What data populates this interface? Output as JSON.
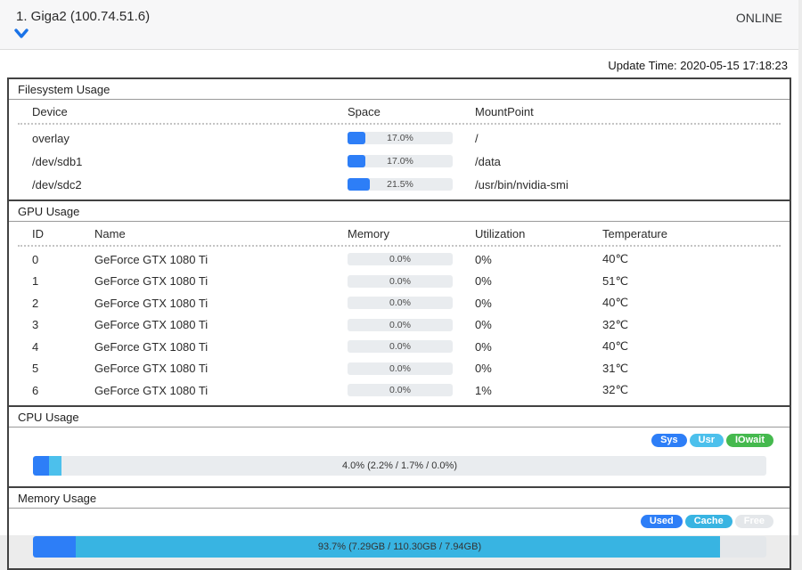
{
  "header": {
    "title": "1. Giga2 (100.74.51.6)",
    "status": "ONLINE",
    "accent_color": "#1a73e8"
  },
  "update_time": "Update Time: 2020-05-15 17:18:23",
  "colors": {
    "blue": "#2d7ef7",
    "cyan": "#3ab5e3",
    "green": "#45b94e",
    "track": "#e9ecef"
  },
  "filesystem": {
    "title": "Filesystem Usage",
    "columns": [
      "Device",
      "Space",
      "MountPoint"
    ],
    "rows": [
      {
        "device": "overlay",
        "space_pct": 17.0,
        "space_label": "17.0%",
        "mountpoint": "/"
      },
      {
        "device": "/dev/sdb1",
        "space_pct": 17.0,
        "space_label": "17.0%",
        "mountpoint": "/data"
      },
      {
        "device": "/dev/sdc2",
        "space_pct": 21.5,
        "space_label": "21.5%",
        "mountpoint": "/usr/bin/nvidia-smi"
      }
    ]
  },
  "gpu": {
    "title": "GPU Usage",
    "columns": [
      "ID",
      "Name",
      "Memory",
      "Utilization",
      "Temperature"
    ],
    "rows": [
      {
        "id": "0",
        "name": "GeForce GTX 1080 Ti",
        "memory_pct": 0.0,
        "memory_label": "0.0%",
        "utilization": "0%",
        "temperature": "40℃"
      },
      {
        "id": "1",
        "name": "GeForce GTX 1080 Ti",
        "memory_pct": 0.0,
        "memory_label": "0.0%",
        "utilization": "0%",
        "temperature": "51℃"
      },
      {
        "id": "2",
        "name": "GeForce GTX 1080 Ti",
        "memory_pct": 0.0,
        "memory_label": "0.0%",
        "utilization": "0%",
        "temperature": "40℃"
      },
      {
        "id": "3",
        "name": "GeForce GTX 1080 Ti",
        "memory_pct": 0.0,
        "memory_label": "0.0%",
        "utilization": "0%",
        "temperature": "32℃"
      },
      {
        "id": "4",
        "name": "GeForce GTX 1080 Ti",
        "memory_pct": 0.0,
        "memory_label": "0.0%",
        "utilization": "0%",
        "temperature": "40℃"
      },
      {
        "id": "5",
        "name": "GeForce GTX 1080 Ti",
        "memory_pct": 0.0,
        "memory_label": "0.0%",
        "utilization": "0%",
        "temperature": "31℃"
      },
      {
        "id": "6",
        "name": "GeForce GTX 1080 Ti",
        "memory_pct": 0.0,
        "memory_label": "0.0%",
        "utilization": "1%",
        "temperature": "32℃"
      }
    ]
  },
  "cpu": {
    "title": "CPU Usage",
    "legend": [
      {
        "label": "Sys",
        "color": "#2d7ef7"
      },
      {
        "label": "Usr",
        "color": "#4cc0ec"
      },
      {
        "label": "IOwait",
        "color": "#45b94e"
      }
    ],
    "bar": {
      "label": "4.0% (2.2% / 1.7% / 0.0%)",
      "total_pct": 4.0,
      "segments": [
        {
          "name": "sys",
          "pct": 2.2,
          "color": "#2d7ef7"
        },
        {
          "name": "usr",
          "pct": 1.7,
          "color": "#4cc0ec"
        },
        {
          "name": "iowait",
          "pct": 0.0,
          "color": "#45b94e"
        }
      ]
    }
  },
  "memory": {
    "title": "Memory Usage",
    "legend": [
      {
        "label": "Used",
        "color": "#2d7ef7"
      },
      {
        "label": "Cache",
        "color": "#38b4e2"
      },
      {
        "label": "Free",
        "color": "#e4e7ea"
      }
    ],
    "bar": {
      "label": "93.7% (7.29GB / 110.30GB / 7.94GB)",
      "total_pct": 93.7,
      "segments": [
        {
          "name": "used",
          "pct": 5.8,
          "color": "#2d7ef7"
        },
        {
          "name": "cache",
          "pct": 87.9,
          "color": "#38b4e2"
        },
        {
          "name": "free",
          "pct": 6.3,
          "color": "#e4e7ea"
        }
      ]
    }
  }
}
